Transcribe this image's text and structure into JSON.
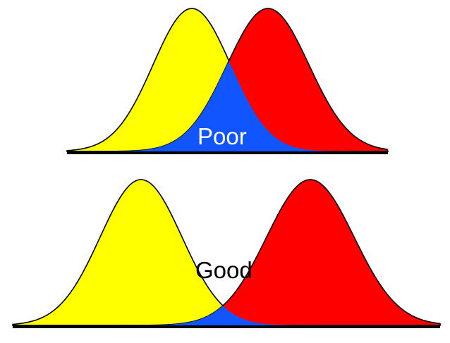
{
  "panels": [
    {
      "label": "Poor",
      "label_color": "#ffffff",
      "left_color": "#ffff00",
      "right_color": "#ff0000",
      "overlap_color": "#1155ff"
    },
    {
      "label": "Good",
      "label_color": "#000000",
      "left_color": "#ffff00",
      "right_color": "#ff0000",
      "overlap_color": "#1155ff"
    }
  ]
}
